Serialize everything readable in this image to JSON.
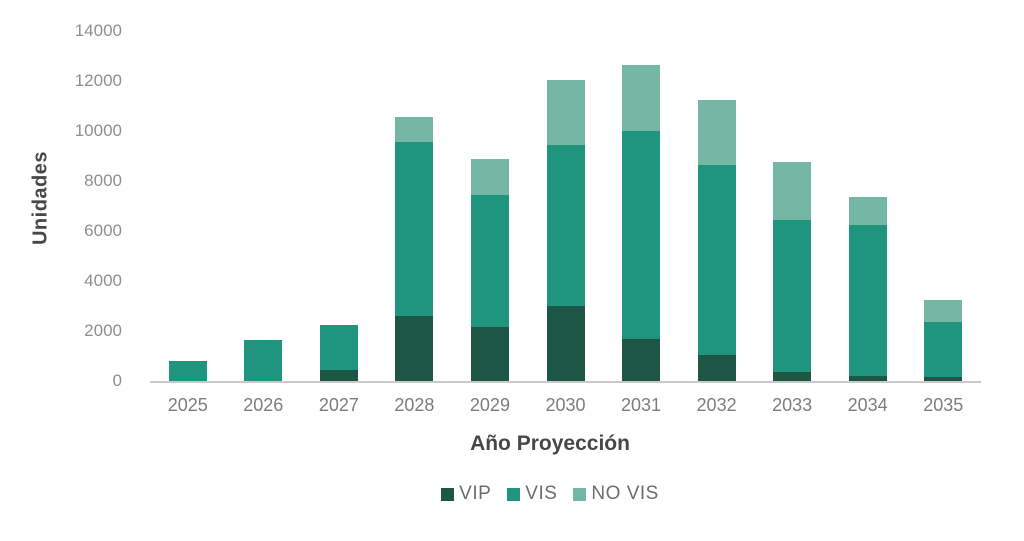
{
  "chart_data": {
    "type": "bar",
    "stacked": true,
    "title": "",
    "xlabel": "Año Proyección",
    "ylabel": "Unidades",
    "categories": [
      "2025",
      "2026",
      "2027",
      "2028",
      "2029",
      "2030",
      "2031",
      "2032",
      "2033",
      "2034",
      "2035"
    ],
    "series": [
      {
        "name": "VIP",
        "color": "#1d5645",
        "values": [
          0,
          0,
          450,
          2600,
          2150,
          3000,
          1700,
          1050,
          350,
          200,
          150
        ]
      },
      {
        "name": "VIS",
        "color": "#1f9580",
        "values": [
          800,
          1650,
          1800,
          6950,
          5300,
          6450,
          8300,
          7600,
          6100,
          6050,
          2200
        ]
      },
      {
        "name": "NO VIS",
        "color": "#74b7a4",
        "values": [
          0,
          0,
          0,
          1000,
          1450,
          2600,
          2650,
          2600,
          2300,
          1100,
          900
        ]
      }
    ],
    "totals": [
      800,
      1650,
      2250,
      10550,
      8900,
      12050,
      12650,
      11250,
      8750,
      7350,
      3250
    ],
    "ylim": [
      0,
      14000
    ],
    "yticks": [
      0,
      2000,
      4000,
      6000,
      8000,
      10000,
      12000,
      14000
    ],
    "grid": false,
    "legend_position": "bottom",
    "axis_line_color": "#c9c9c9",
    "tick_label_color": "#8f8f8f",
    "axis_title_color": "#474747"
  }
}
